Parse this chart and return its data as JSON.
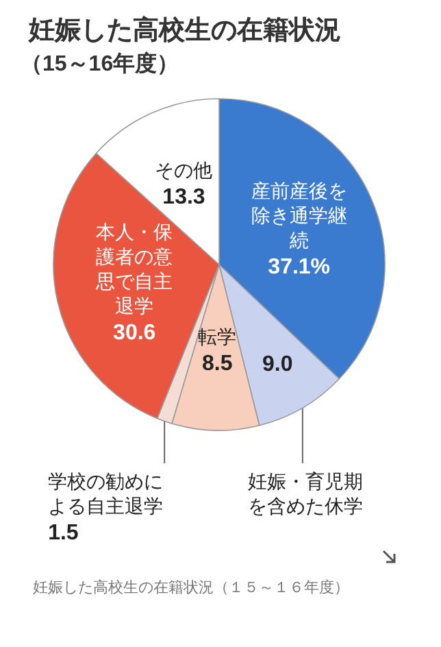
{
  "chart_data": {
    "type": "pie",
    "title": "妊娠した高校生の在籍状況",
    "subtitle": "（15～16年度）",
    "categories": [
      "産前産後を除き通学継続",
      "妊娠・育児期を含めた休学",
      "転学",
      "学校の勧めによる自主退学",
      "本人・保護者の意思で自主退学",
      "その他"
    ],
    "values": [
      37.1,
      9.0,
      8.5,
      1.5,
      30.6,
      13.3
    ],
    "value_labels": [
      "37.1%",
      "9.0",
      "8.5",
      "1.5",
      "30.6",
      "13.3"
    ],
    "colors": [
      "#3a7bd0",
      "#c9d2ee",
      "#f8cfbd",
      "#f3ddd5",
      "#e9553f",
      "#ffffff"
    ],
    "annotations": [
      "妊娠した高校生の在籍状況（１５～１６年度）"
    ]
  }
}
